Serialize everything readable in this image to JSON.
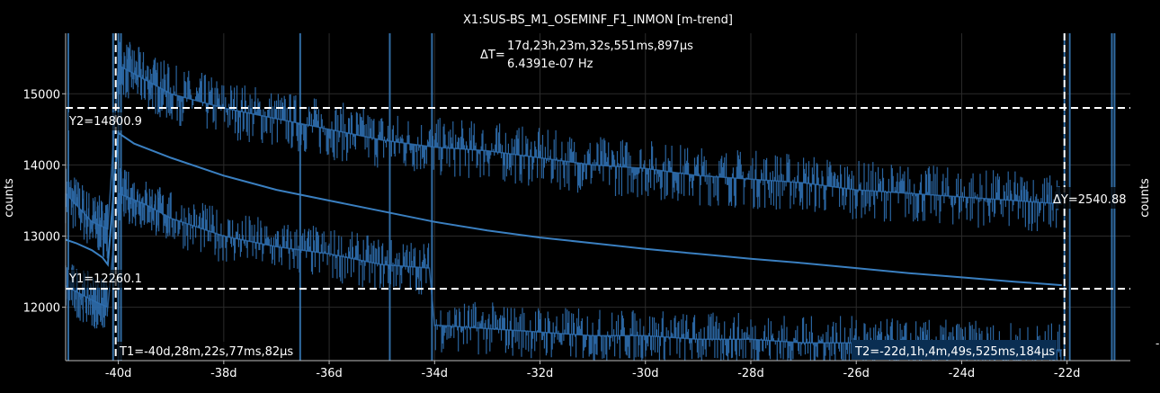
{
  "chart_data": {
    "type": "line",
    "title": "X1:SUS-BS_M1_OSEMINF_F1_INMON [m-trend]",
    "ylabel": "counts",
    "ylabel_right": "counts",
    "x_unit": "days",
    "xlim": [
      -41.0,
      -20.8
    ],
    "ylim": [
      11250,
      15850
    ],
    "xticks": [
      -40,
      -38,
      -36,
      -34,
      -32,
      -30,
      -28,
      -26,
      -24,
      -22
    ],
    "xtick_labels": [
      "-40d",
      "-38d",
      "-36d",
      "-34d",
      "-32d",
      "-30d",
      "-28d",
      "-26d",
      "-24d",
      "-22d"
    ],
    "yticks": [
      12000,
      13000,
      14000,
      15000
    ],
    "ytick_labels": [
      "12000",
      "13000",
      "14000",
      "15000"
    ],
    "right_tick_label": "-",
    "grid": true,
    "series": [
      {
        "role": "mean",
        "color": "#3a7fc0",
        "x": [
          -41.0,
          -40.8,
          -40.5,
          -40.3,
          -40.2,
          -40.0,
          -39.7,
          -39.0,
          -38.0,
          -37.0,
          -36.0,
          -35.0,
          -34.0,
          -33.0,
          -32.0,
          -31.0,
          -30.0,
          -29.0,
          -28.0,
          -27.0,
          -26.0,
          -25.0,
          -24.0,
          -23.0,
          -22.1
        ],
        "y": [
          12950,
          12900,
          12800,
          12700,
          12600,
          14450,
          14300,
          14100,
          13850,
          13650,
          13500,
          13350,
          13200,
          13080,
          12980,
          12900,
          12820,
          12750,
          12680,
          12620,
          12550,
          12480,
          12420,
          12360,
          12310
        ]
      },
      {
        "role": "max",
        "color": "#2f6fb0",
        "x": [
          -41.0,
          -40.5,
          -40.2,
          -40.0,
          -39.5,
          -39.0,
          -38.0,
          -37.0,
          -36.0,
          -35.0,
          -34.0,
          -33.0,
          -32.0,
          -31.0,
          -30.0,
          -29.0,
          -28.0,
          -27.0,
          -26.0,
          -25.0,
          -24.0,
          -23.0,
          -22.1
        ],
        "y": [
          13600,
          13200,
          13100,
          15400,
          15200,
          15000,
          14800,
          14650,
          14500,
          14350,
          14250,
          14200,
          14100,
          14000,
          13950,
          13850,
          13800,
          13750,
          13650,
          13600,
          13550,
          13500,
          13450
        ]
      },
      {
        "role": "min",
        "color": "#2f6fb0",
        "x": [
          -41.0,
          -40.5,
          -40.2,
          -40.0,
          -39.5,
          -39.0,
          -38.0,
          -37.0,
          -36.0,
          -35.0,
          -34.1,
          -34.0,
          -33.0,
          -32.0,
          -31.0,
          -30.0,
          -29.0,
          -28.0,
          -27.0,
          -26.0,
          -25.0,
          -24.0,
          -23.0,
          -22.1
        ],
        "y": [
          12300,
          12100,
          12000,
          13600,
          13450,
          13250,
          13000,
          12850,
          12750,
          12600,
          12550,
          11750,
          11700,
          11650,
          11600,
          11600,
          11550,
          11550,
          11500,
          11500,
          11450,
          11450,
          11400,
          11400
        ]
      }
    ],
    "cursors": {
      "T1": {
        "x": -40.05,
        "label": "T1=-40d,28m,22s,77ms,82μs"
      },
      "T2": {
        "x": -22.05,
        "label": "T2=-22d,1h,4m,49s,525ms,184μs"
      },
      "Y1": {
        "y": 12260.1,
        "label": "Y1=12260.1"
      },
      "Y2": {
        "y": 14800.9,
        "label": "Y2=14800.9"
      },
      "delta_t_prefix": "ΔT=",
      "delta_t_value": "17d,23h,23m,32s,551ms,897μs",
      "delta_t_freq": "6.4391e-07 Hz",
      "delta_y_label": "ΔY=2540.88"
    },
    "spikes_x": [
      -40.95,
      -40.1,
      -40.0,
      -39.95,
      -36.55,
      -34.85,
      -34.05,
      -22.05,
      -21.95,
      -21.15,
      -21.1
    ]
  }
}
